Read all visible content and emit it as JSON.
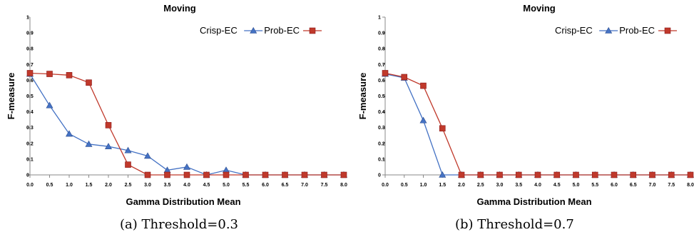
{
  "chart_data": [
    {
      "type": "line",
      "title": "Moving",
      "xlabel": "Gamma Distribution Mean",
      "ylabel": "F-measure",
      "x": [
        0.0,
        0.5,
        1.0,
        1.5,
        2.0,
        2.5,
        3.0,
        3.5,
        4.0,
        4.5,
        5.0,
        5.5,
        6.0,
        6.5,
        7.0,
        7.5,
        8.0
      ],
      "x_tick_labels": [
        "0.0",
        "0.5",
        "1.0",
        "1.5",
        "2.0",
        "2.5",
        "3.0",
        "3.5",
        "4.0",
        "4.5",
        "5.0",
        "5.5",
        "6.0",
        "6.5",
        "7.0",
        "7.5",
        "8.0"
      ],
      "y_tick_labels": [
        "0",
        "0.1",
        "0.2",
        "0.3",
        "0.4",
        "0.5",
        "0.6",
        "0.7",
        "0.8",
        "0.9",
        "1"
      ],
      "ylim": [
        0,
        1
      ],
      "xlim": [
        0,
        8
      ],
      "grid": false,
      "legend_position": "top-right",
      "series": [
        {
          "name": "Crisp-EC",
          "color": "#4472C4",
          "marker": "triangle",
          "values": [
            0.64,
            0.44,
            0.26,
            0.195,
            0.18,
            0.155,
            0.12,
            0.03,
            0.05,
            0.0,
            0.03,
            0.0,
            0.0,
            0.0,
            0.0,
            0.0,
            0.0
          ]
        },
        {
          "name": "Prob-EC",
          "color": "#C0392B",
          "marker": "square",
          "values": [
            0.645,
            0.64,
            0.632,
            0.585,
            0.315,
            0.065,
            0.0,
            0.0,
            0.0,
            0.0,
            0.0,
            0.0,
            0.0,
            0.0,
            0.0,
            0.0,
            0.0
          ]
        }
      ]
    },
    {
      "type": "line",
      "title": "Moving",
      "xlabel": "Gamma Distribution Mean",
      "ylabel": "F-measure",
      "x": [
        0.0,
        0.5,
        1.0,
        1.5,
        2.0,
        2.5,
        3.0,
        3.5,
        4.0,
        4.5,
        5.0,
        5.5,
        6.0,
        6.5,
        7.0,
        7.5,
        8.0
      ],
      "x_tick_labels": [
        "0.0",
        "0.5",
        "1.0",
        "1.5",
        "2.0",
        "2.5",
        "3.0",
        "3.5",
        "4.0",
        "4.5",
        "5.0",
        "5.5",
        "6.0",
        "6.5",
        "7.0",
        "7.5",
        "8.0"
      ],
      "y_tick_labels": [
        "0",
        "0.1",
        "0.2",
        "0.3",
        "0.4",
        "0.5",
        "0.6",
        "0.7",
        "0.8",
        "0.9",
        "1"
      ],
      "ylim": [
        0,
        1
      ],
      "xlim": [
        0,
        8
      ],
      "grid": false,
      "legend_position": "top-right",
      "series": [
        {
          "name": "Crisp-EC",
          "color": "#4472C4",
          "marker": "triangle",
          "values": [
            0.64,
            0.615,
            0.345,
            0.0,
            0.0,
            0.0,
            0.0,
            0.0,
            0.0,
            0.0,
            0.0,
            0.0,
            0.0,
            0.0,
            0.0,
            0.0,
            0.0
          ]
        },
        {
          "name": "Prob-EC",
          "color": "#C0392B",
          "marker": "square",
          "values": [
            0.645,
            0.62,
            0.565,
            0.295,
            0.0,
            0.0,
            0.0,
            0.0,
            0.0,
            0.0,
            0.0,
            0.0,
            0.0,
            0.0,
            0.0,
            0.0,
            0.0
          ]
        }
      ]
    }
  ],
  "captions": [
    "(a) Threshold=0.3",
    "(b) Threshold=0.7"
  ]
}
